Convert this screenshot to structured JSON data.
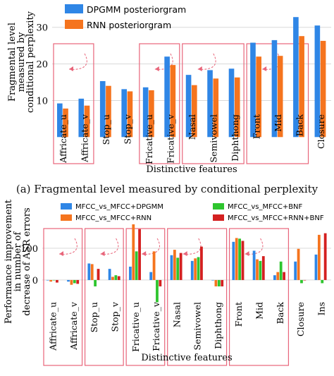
{
  "colors": {
    "dpgmm": "#2f86e6",
    "rnn": "#f5741e",
    "bnf": "#2ec52e",
    "rnn_bnf": "#d42020",
    "highlight_box": "#e8657a",
    "grid": "#d9d9d9"
  },
  "caption_a": "(a) Fragmental level measured by conditional perplexity",
  "chart_data": [
    {
      "type": "bar",
      "title": "",
      "xlabel": "Distinctive features",
      "ylabel_lines": [
        "Fragmental level",
        "measured by",
        "conditional perplexity"
      ],
      "ylim": [
        7,
        34
      ],
      "yticks": [
        10,
        20,
        30
      ],
      "grid": true,
      "legend_position": "top-left",
      "categories": [
        "Affricate_u",
        "Affricate_v",
        "Stop_u",
        "Stop_v",
        "Fricative_u",
        "Fricative_v",
        "Nasal",
        "Semivowel",
        "Diphthong",
        "Front",
        "Mid",
        "Back",
        "Closure"
      ],
      "series": [
        {
          "name": "DPGMM posteriorgram",
          "color_key": "dpgmm",
          "values": [
            9.2,
            10.5,
            15.3,
            13.1,
            13.6,
            22.0,
            17.0,
            18.3,
            18.7,
            25.8,
            26.5,
            32.8,
            30.5
          ]
        },
        {
          "name": "RNN posteriorgram",
          "color_key": "rnn",
          "values": [
            7.8,
            8.6,
            14.0,
            12.5,
            12.8,
            19.7,
            14.2,
            16.0,
            16.3,
            22.0,
            22.2,
            27.6,
            26.3
          ]
        }
      ],
      "highlight_groups": [
        {
          "first": 0,
          "last": 1
        },
        {
          "first": 4,
          "last": 5
        },
        {
          "first": 6,
          "last": 8
        },
        {
          "first": 9,
          "last": 11
        }
      ]
    },
    {
      "type": "bar",
      "title": "",
      "xlabel": "Distinctive features",
      "ylabel_lines": [
        "Performance improvement",
        "in number of",
        "decrease of ASR errors"
      ],
      "ylim": [
        -60,
        175
      ],
      "yticks": [
        0,
        100
      ],
      "grid": true,
      "legend_position": "top",
      "categories": [
        "Affricate_u",
        "Affricate_v",
        "Stop_u",
        "Stop_v",
        "Fricative_u",
        "Fricative_v",
        "Nasal",
        "Semivowel",
        "Diphthong",
        "Front",
        "Mid",
        "Back",
        "Closure",
        "Ins"
      ],
      "series": [
        {
          "name": "MFCC_vs_MFCC+DPGMM",
          "color_key": "dpgmm",
          "values": [
            0,
            -5,
            52,
            35,
            42,
            25,
            78,
            60,
            0,
            120,
            92,
            15,
            58,
            80
          ]
        },
        {
          "name": "MFCC_vs_MFCC+RNN",
          "color_key": "rnn",
          "values": [
            -5,
            -15,
            50,
            10,
            175,
            90,
            95,
            68,
            -20,
            132,
            65,
            25,
            98,
            142
          ]
        },
        {
          "name": "MFCC_vs_MFCC+BNF",
          "color_key": "bnf",
          "values": [
            0,
            -10,
            -20,
            15,
            90,
            -70,
            70,
            72,
            -20,
            130,
            60,
            58,
            -10,
            -10
          ]
        },
        {
          "name": "MFCC_vs_MFCC+RNN+BNF",
          "color_key": "rnn_bnf",
          "values": [
            -8,
            -12,
            35,
            12,
            160,
            -20,
            85,
            105,
            -20,
            123,
            75,
            25,
            0,
            147
          ]
        }
      ],
      "highlight_groups": [
        {
          "first": 0,
          "last": 1
        },
        {
          "first": 2,
          "last": 3
        },
        {
          "first": 4,
          "last": 5
        },
        {
          "first": 6,
          "last": 8
        },
        {
          "first": 9,
          "last": 11
        }
      ]
    }
  ]
}
